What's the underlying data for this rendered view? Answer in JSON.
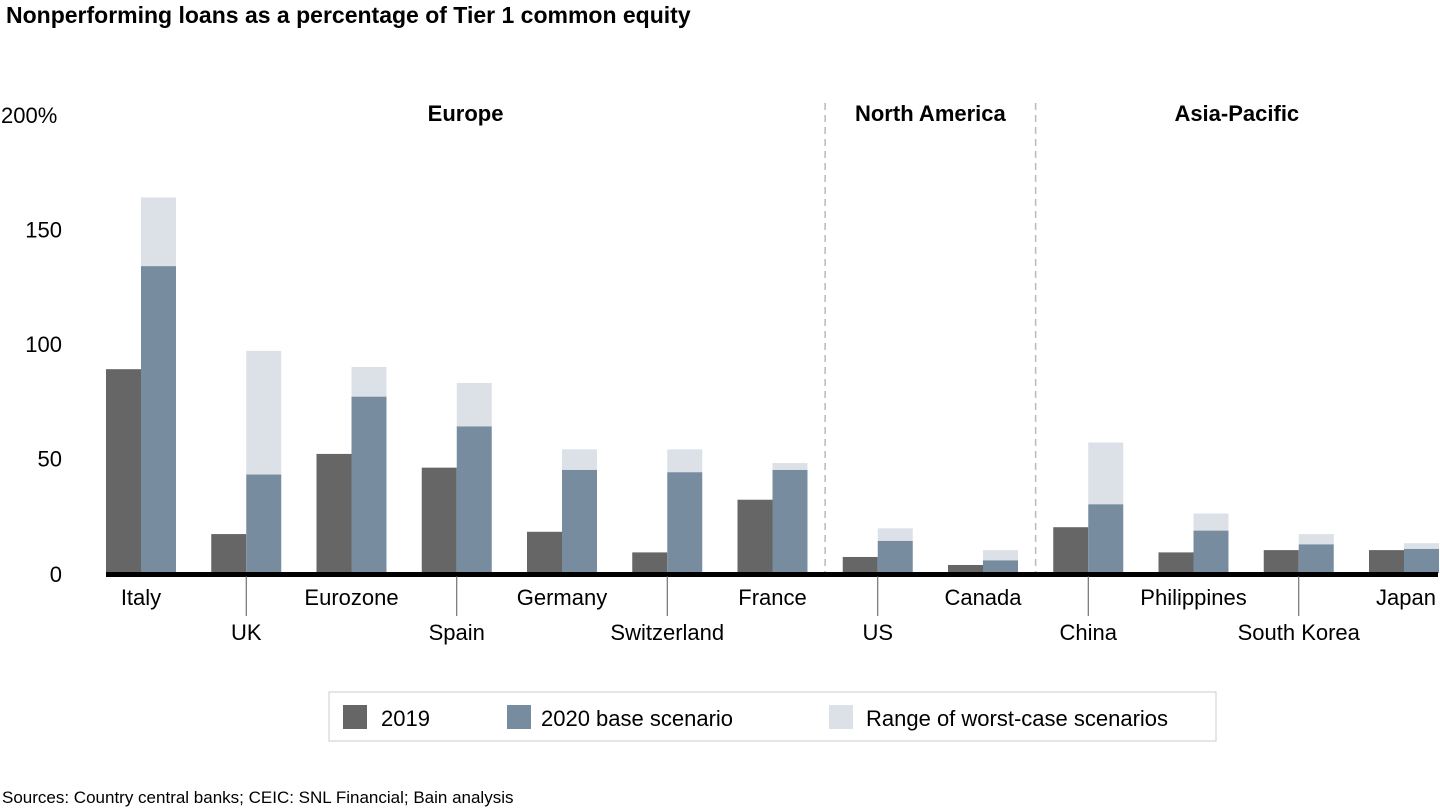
{
  "title": "Nonperforming loans as a percentage of Tier 1 common equity",
  "source": "Sources: Country central banks; CEIC: SNL Financial; Bain analysis",
  "colors": {
    "y2019": "#666666",
    "base2020": "#778d9f",
    "range": "#dce1e8",
    "axis": "#000000",
    "divider": "#bbbbbb"
  },
  "chart_data": {
    "type": "bar",
    "title": "Nonperforming loans as a percentage of Tier 1 common equity",
    "ylim": [
      0,
      200
    ],
    "yticks": [
      {
        "value": 0,
        "label": "0"
      },
      {
        "value": 50,
        "label": "50"
      },
      {
        "value": 100,
        "label": "100"
      },
      {
        "value": 150,
        "label": "150"
      },
      {
        "value": 200,
        "label": "200%"
      }
    ],
    "grid": false,
    "legend_position": "bottom",
    "regions": [
      {
        "name": "Europe",
        "start": 0,
        "end": 6
      },
      {
        "name": "North America",
        "start": 7,
        "end": 8
      },
      {
        "name": "Asia-Pacific",
        "start": 9,
        "end": 12
      }
    ],
    "categories": [
      "Italy",
      "UK",
      "Eurozone",
      "Spain",
      "Germany",
      "Switzerland",
      "France",
      "US",
      "Canada",
      "China",
      "Philippines",
      "South Korea",
      "Japan"
    ],
    "series": [
      {
        "name": "2019",
        "values": [
          89,
          17,
          52,
          46,
          18,
          9,
          32,
          7,
          3.5,
          20,
          9,
          10,
          10
        ]
      },
      {
        "name": "2020 base scenario",
        "values": [
          134,
          43,
          77,
          64,
          45,
          44,
          45,
          14,
          5.5,
          30,
          18.5,
          12.5,
          10.5
        ]
      },
      {
        "name": "Range of worst-case scenarios",
        "values": [
          164,
          97,
          90,
          83,
          54,
          54,
          48,
          19.5,
          10,
          57,
          26,
          17,
          13
        ]
      }
    ]
  }
}
